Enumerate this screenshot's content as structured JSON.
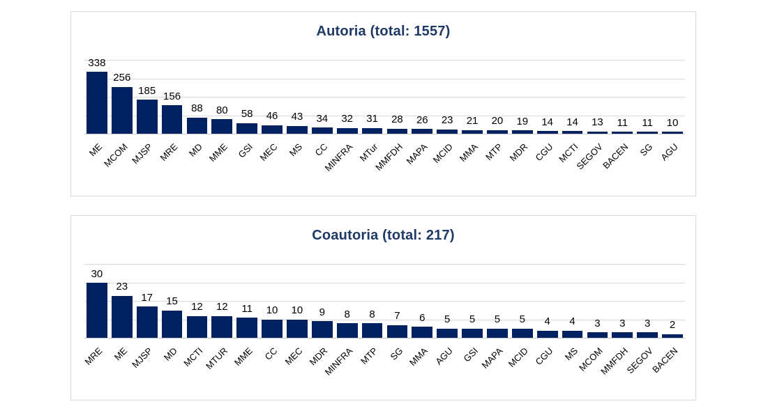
{
  "page": {
    "background": "#ffffff",
    "card_border_color": "#d9d9d9",
    "gridline_color": "#d9d9d9"
  },
  "chart_data": [
    {
      "type": "bar",
      "title": "Autoria (total: 1557)",
      "total": 1557,
      "categories": [
        "ME",
        "MCOM",
        "MJSP",
        "MRE",
        "MD",
        "MME",
        "GSI",
        "MEC",
        "MS",
        "CC",
        "MINFRA",
        "MTur",
        "MMFDH",
        "MAPA",
        "MCID",
        "MMA",
        "MTP",
        "MDR",
        "CGU",
        "MCTI",
        "SEGOV",
        "BACEN",
        "SG",
        "AGU"
      ],
      "values": [
        338,
        256,
        185,
        156,
        88,
        80,
        58,
        46,
        43,
        34,
        32,
        31,
        28,
        26,
        23,
        21,
        20,
        19,
        14,
        14,
        13,
        11,
        11,
        10
      ],
      "xlabel": "",
      "ylabel": "",
      "ylim": [
        0,
        400
      ],
      "gridline_step": 100,
      "grid": true,
      "legend": "none",
      "data_labels": "outside-end",
      "category_label_rotation_deg": -45,
      "bar_color": "#002060",
      "title_color": "#1f3864",
      "label_color": "#000000"
    },
    {
      "type": "bar",
      "title": "Coautoria (total: 217)",
      "total": 217,
      "categories": [
        "MRE",
        "ME",
        "MJSP",
        "MD",
        "MCTI",
        "MTUR",
        "MME",
        "CC",
        "MEC",
        "MDR",
        "MINFRA",
        "MTP",
        "SG",
        "MMA",
        "AGU",
        "GSI",
        "MAPA",
        "MCID",
        "CGU",
        "MS",
        "MCOM",
        "MMFDH",
        "SEGOV",
        "BACEN"
      ],
      "values": [
        30,
        23,
        17,
        15,
        12,
        12,
        11,
        10,
        10,
        9,
        8,
        8,
        7,
        6,
        5,
        5,
        5,
        5,
        4,
        4,
        3,
        3,
        3,
        2
      ],
      "xlabel": "",
      "ylabel": "",
      "ylim": [
        0,
        40
      ],
      "gridline_step": 10,
      "grid": true,
      "legend": "none",
      "data_labels": "outside-end",
      "category_label_rotation_deg": -45,
      "bar_color": "#002060",
      "title_color": "#1f3864",
      "label_color": "#000000"
    }
  ]
}
